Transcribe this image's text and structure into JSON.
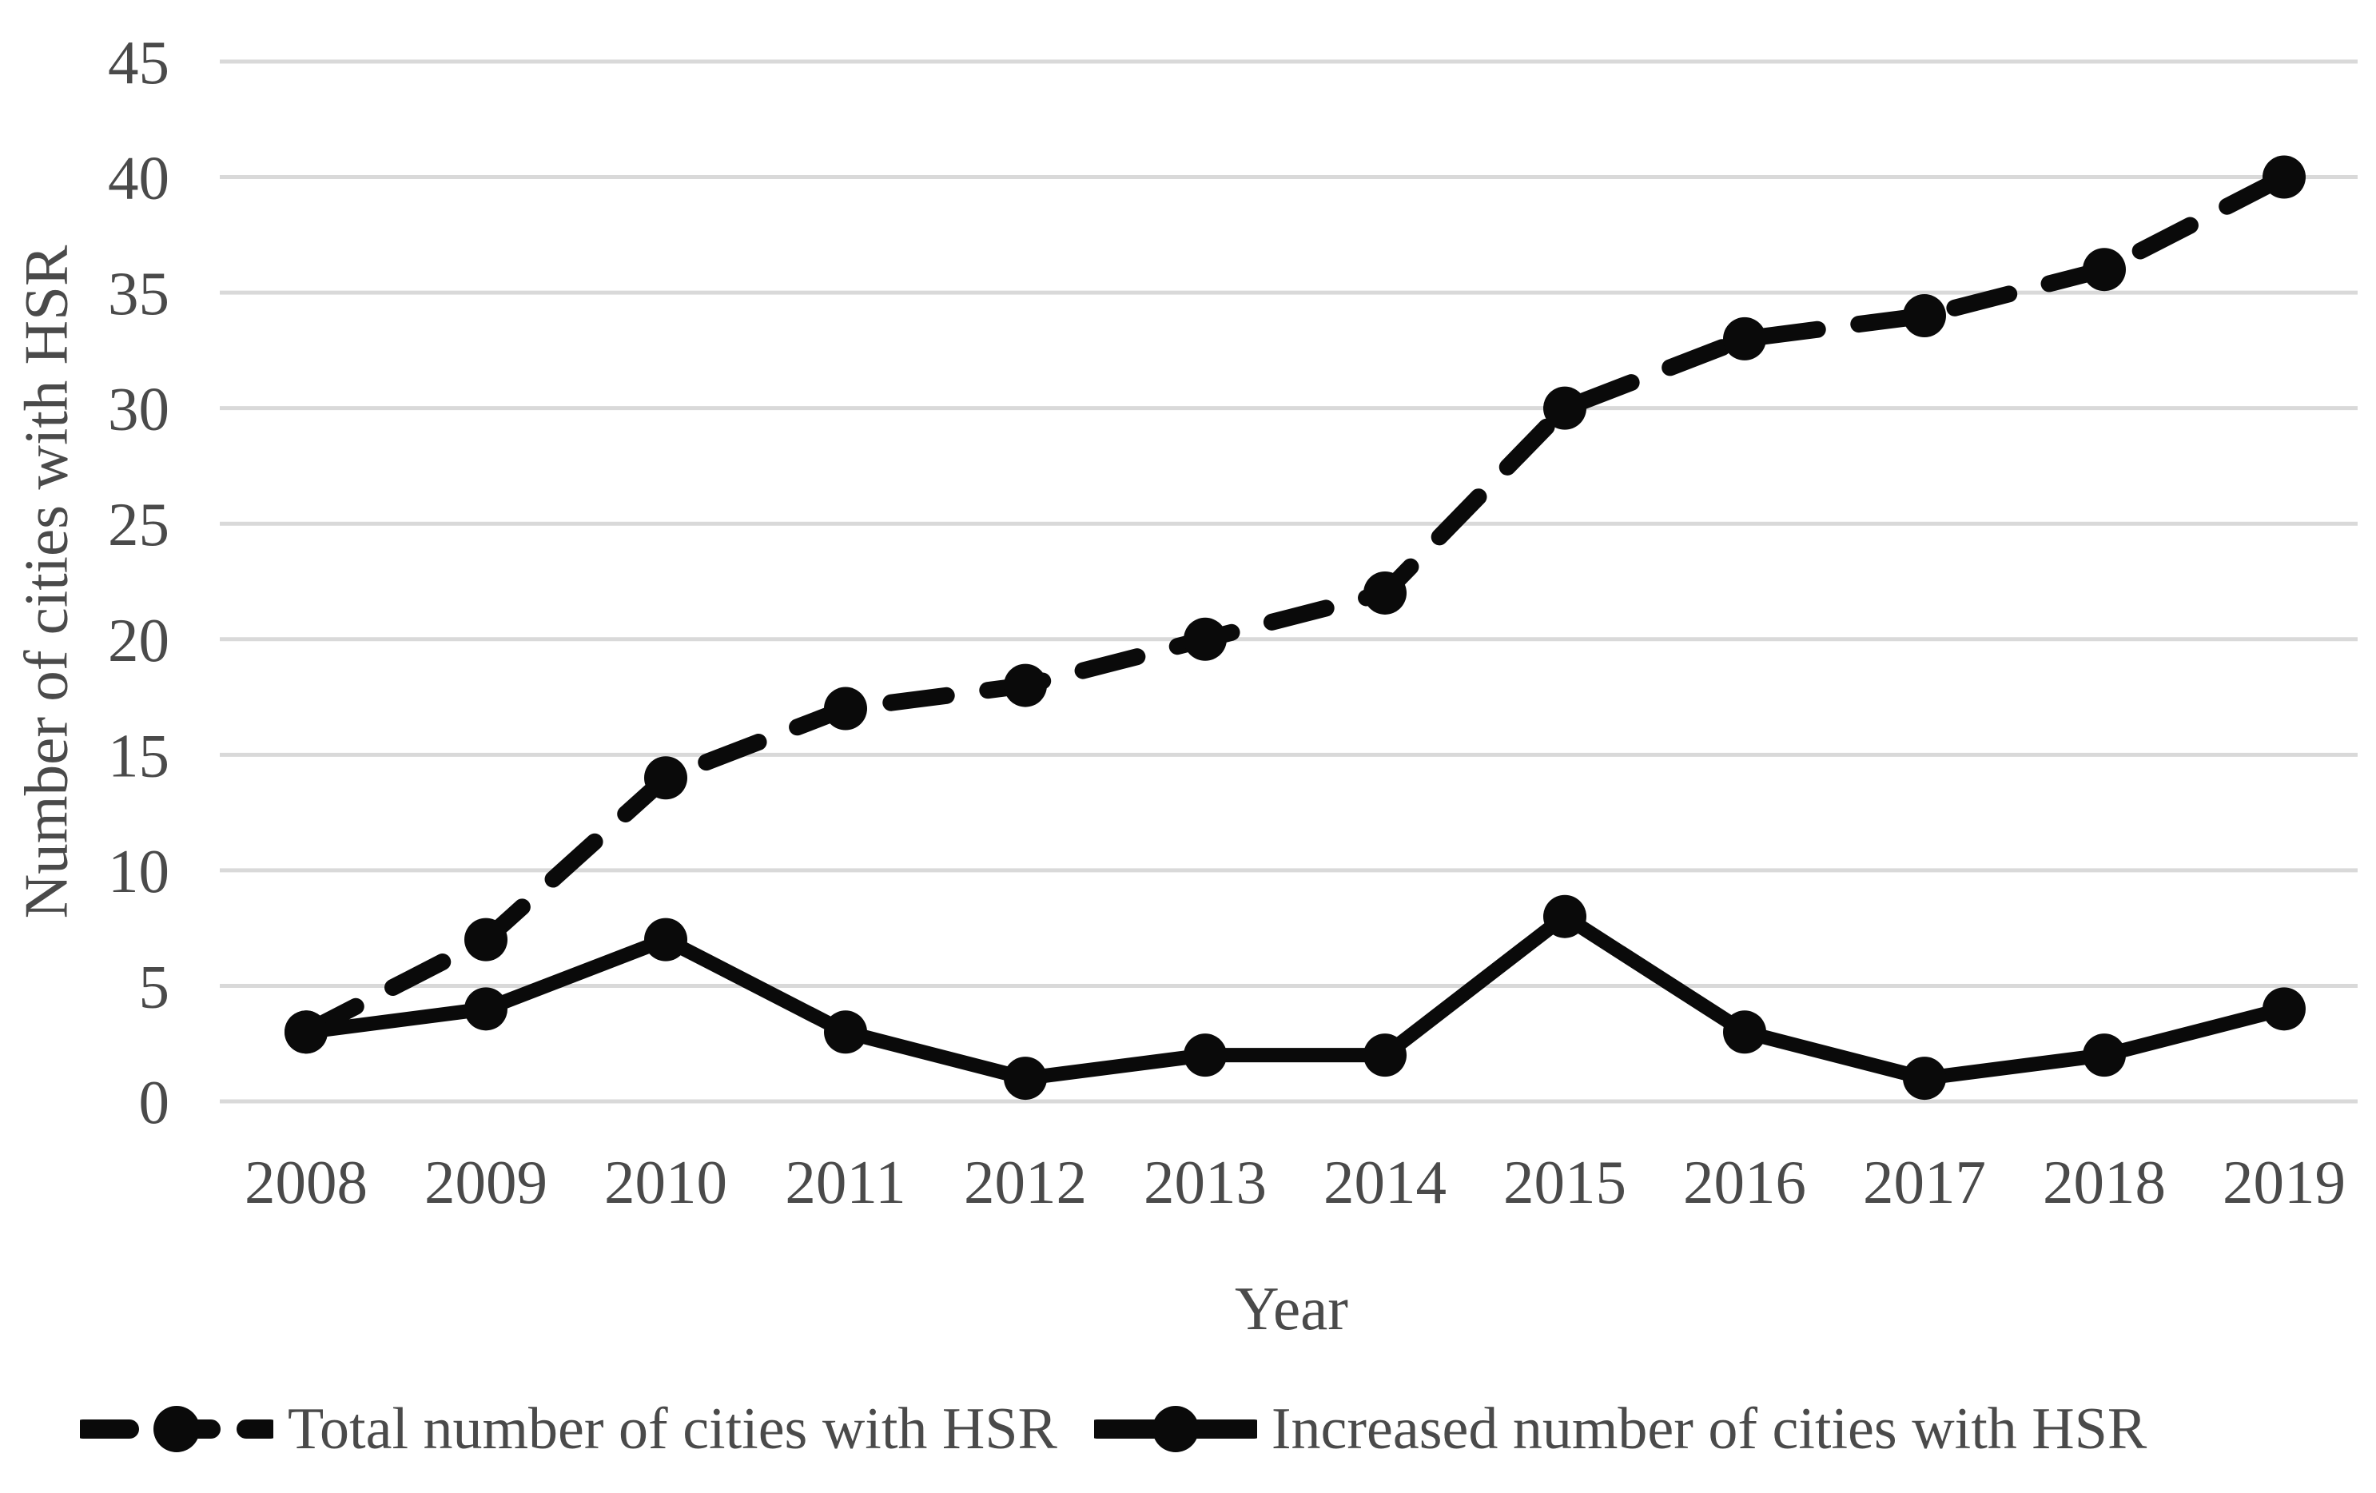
{
  "chart_data": {
    "type": "line",
    "categories": [
      "2008",
      "2009",
      "2010",
      "2011",
      "2012",
      "2013",
      "2014",
      "2015",
      "2016",
      "2017",
      "2018",
      "2019"
    ],
    "series": [
      {
        "name": "Total number of cities with HSR",
        "style": "dashed",
        "marker": "circle",
        "color": "#0a0a0a",
        "values": [
          3,
          7,
          14,
          17,
          18,
          20,
          22,
          30,
          33,
          34,
          36,
          40
        ]
      },
      {
        "name": "Increased number of cities with HSR",
        "style": "solid",
        "marker": "circle",
        "color": "#0a0a0a",
        "values": [
          3,
          4,
          7,
          3,
          1,
          2,
          2,
          8,
          3,
          1,
          2,
          4
        ]
      }
    ],
    "title": "",
    "xlabel": "Year",
    "ylabel": "Number of cities with HSR",
    "ylim": [
      0,
      45
    ],
    "ytick_step": 5,
    "yticks": [
      0,
      5,
      10,
      15,
      20,
      25,
      30,
      35,
      40,
      45
    ],
    "grid": "horizontal",
    "gridline_color": "#d9d9d9",
    "text_color": "#4a4a4a",
    "legend_position": "bottom"
  }
}
